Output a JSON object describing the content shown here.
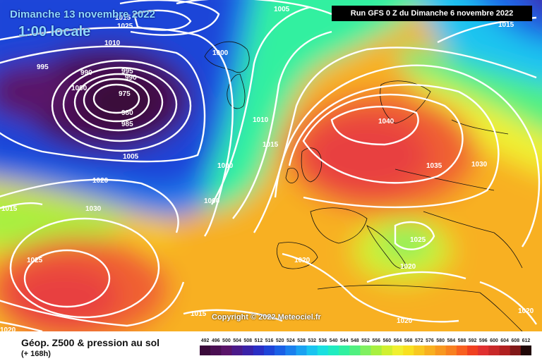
{
  "header": {
    "date_title": "Dimanche 13 novembre 2022",
    "time_title": "1:00 locale",
    "run_info": "Run GFS 0 Z du Dimanche 6 novembre 2022"
  },
  "footer": {
    "product": "Géop. Z500 & pression au sol",
    "lead_time": "(+ 168h)",
    "copyright": "Copyright © 2022 Meteociel.fr"
  },
  "legend": {
    "values": [
      "492",
      "496",
      "500",
      "504",
      "508",
      "512",
      "516",
      "520",
      "524",
      "528",
      "532",
      "536",
      "540",
      "544",
      "548",
      "552",
      "556",
      "560",
      "564",
      "568",
      "572",
      "576",
      "580",
      "584",
      "588",
      "592",
      "596",
      "600",
      "604",
      "608",
      "612"
    ],
    "colors": [
      "#3a0a3a",
      "#4a0f52",
      "#5a1469",
      "#4b1a8a",
      "#3a22a8",
      "#2a2ec4",
      "#1e44d8",
      "#1a60e6",
      "#1a80ee",
      "#1aa2f2",
      "#1ac4f0",
      "#1ae0e0",
      "#20ecc0",
      "#30f0a0",
      "#50f080",
      "#80f060",
      "#a8f040",
      "#d0f030",
      "#f0f030",
      "#f8e020",
      "#f8c820",
      "#f8b020",
      "#f89820",
      "#f88020",
      "#f86020",
      "#f04020",
      "#e03030",
      "#c82828",
      "#b02020",
      "#801818",
      "#200808"
    ]
  },
  "isobar_labels": [
    {
      "text": "1015",
      "name": "isobar-1015-nw"
    },
    {
      "text": "1025",
      "name": "isobar-1025-nw"
    },
    {
      "text": "1010",
      "name": "isobar-1010-nw"
    },
    {
      "text": "1005",
      "name": "isobar-1005-top"
    },
    {
      "text": "1000",
      "name": "isobar-1000-greenland"
    },
    {
      "text": "995",
      "name": "isobar-995-west"
    },
    {
      "text": "990",
      "name": "isobar-990-west"
    },
    {
      "text": "995",
      "name": "isobar-995-low"
    },
    {
      "text": "990",
      "name": "isobar-990-low"
    },
    {
      "text": "1000",
      "name": "isobar-1000-low"
    },
    {
      "text": "975",
      "name": "isobar-975-low"
    },
    {
      "text": "980",
      "name": "isobar-980-low"
    },
    {
      "text": "985",
      "name": "isobar-985-low"
    },
    {
      "text": "1005",
      "name": "isobar-1005-low"
    },
    {
      "text": "1010",
      "name": "isobar-1010-mid"
    },
    {
      "text": "1015",
      "name": "isobar-1015-mid"
    },
    {
      "text": "1000",
      "name": "isobar-1000-trough-n"
    },
    {
      "text": "1000",
      "name": "isobar-1000-trough-s"
    },
    {
      "text": "1020",
      "name": "isobar-1020-atl"
    },
    {
      "text": "1015",
      "name": "isobar-1015-west"
    },
    {
      "text": "1030",
      "name": "isobar-1030-azores"
    },
    {
      "text": "1025",
      "name": "isobar-1025-azores"
    },
    {
      "text": "1020",
      "name": "isobar-1020-sw"
    },
    {
      "text": "1040",
      "name": "isobar-1040-scand"
    },
    {
      "text": "1035",
      "name": "isobar-1035-europe"
    },
    {
      "text": "1030",
      "name": "isobar-1030-east"
    },
    {
      "text": "1025",
      "name": "isobar-1025-italy"
    },
    {
      "text": "1020",
      "name": "isobar-1020-iberia"
    },
    {
      "text": "1020",
      "name": "isobar-1020-med"
    },
    {
      "text": "1015",
      "name": "isobar-1015-south"
    },
    {
      "text": "1020",
      "name": "isobar-1020-africa"
    },
    {
      "text": "1020",
      "name": "isobar-1020-se"
    },
    {
      "text": "1015",
      "name": "isobar-1015-ne"
    }
  ]
}
